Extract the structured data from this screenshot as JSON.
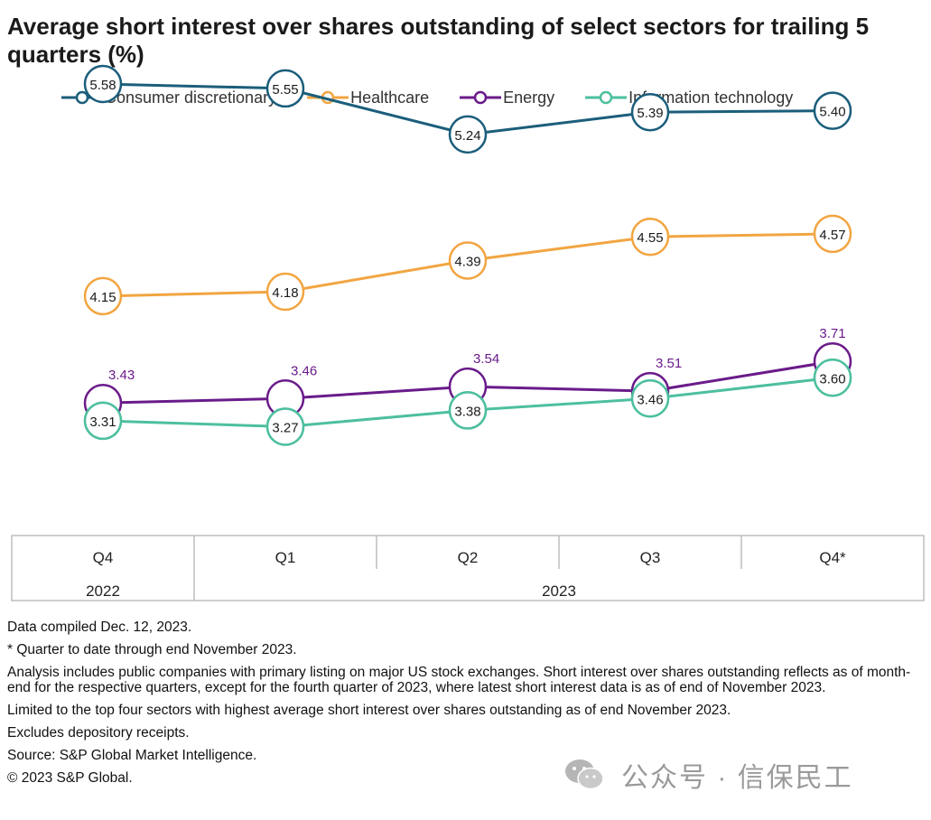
{
  "title": "Average short interest over shares outstanding of select sectors for trailing 5 quarters (%)",
  "legend": [
    {
      "name": "Consumer discretionary",
      "color": "#1b5e7b"
    },
    {
      "name": "Healthcare",
      "color": "#f2a541"
    },
    {
      "name": "Energy",
      "color": "#6a1b8a"
    },
    {
      "name": "Information technology",
      "color": "#4dbf9f"
    }
  ],
  "chart_data": {
    "type": "line",
    "title": "Average short interest over shares outstanding of select sectors for trailing 5 quarters (%)",
    "categories": [
      "Q4",
      "Q1",
      "Q2",
      "Q3",
      "Q4*"
    ],
    "year_groups": [
      {
        "label": "2022",
        "span": 1
      },
      {
        "label": "2023",
        "span": 4
      }
    ],
    "series": [
      {
        "name": "Consumer discretionary",
        "color": "#1b5e7b",
        "values": [
          5.58,
          5.55,
          5.24,
          5.39,
          5.4
        ],
        "labels": [
          "5.58",
          "5.55",
          "5.24",
          "5.39",
          "5.40"
        ]
      },
      {
        "name": "Healthcare",
        "color": "#f2a541",
        "values": [
          4.15,
          4.18,
          4.39,
          4.55,
          4.57
        ],
        "labels": [
          "4.15",
          "4.18",
          "4.39",
          "4.55",
          "4.57"
        ]
      },
      {
        "name": "Energy",
        "color": "#6a1b8a",
        "values": [
          3.43,
          3.46,
          3.54,
          3.51,
          3.71
        ],
        "labels": [
          "3.43",
          "3.46",
          "3.54",
          "3.51",
          "3.71"
        ]
      },
      {
        "name": "Information technology",
        "color": "#4dbf9f",
        "values": [
          3.31,
          3.27,
          3.38,
          3.46,
          3.6
        ],
        "labels": [
          "3.31",
          "3.27",
          "3.38",
          "3.46",
          "3.60"
        ]
      }
    ],
    "ylim": [
      2.5,
      6.0
    ],
    "grid": false,
    "legend_position": "top"
  },
  "notes": [
    "Data compiled Dec. 12, 2023.",
    "* Quarter to date through end November 2023.",
    "Analysis includes public companies with primary listing on major US stock exchanges. Short interest over shares outstanding reflects as of month-end for the respective quarters, except for the fourth quarter of 2023, where latest short interest data is as of end of November 2023.",
    "Limited to the top four sectors with highest average short interest over shares outstanding as of end November 2023.",
    "Excludes depository receipts.",
    "Source: S&P Global Market Intelligence.",
    "© 2023 S&P Global."
  ],
  "watermark": {
    "text": "公众号 · 信保民工",
    "icon": "wechat-icon"
  }
}
